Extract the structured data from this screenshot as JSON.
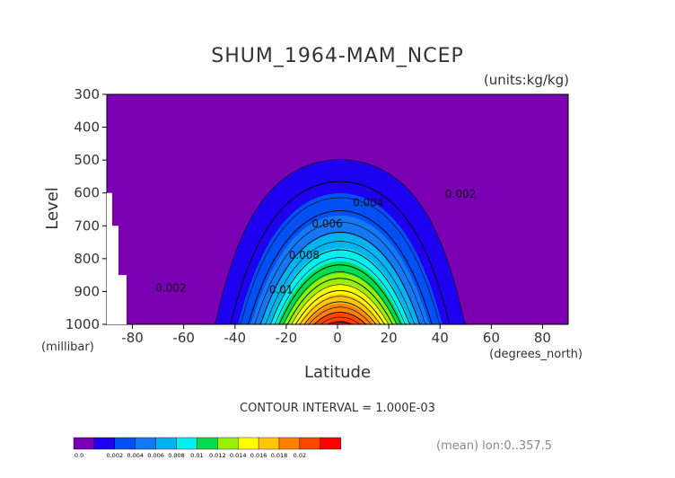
{
  "chart_data": {
    "type": "contour",
    "title": "SHUM_1964-MAM_NCEP",
    "units_label": "(units:kg/kg)",
    "xlabel": "Latitude",
    "ylabel": "Level",
    "x_units": "(degrees_north)",
    "y_units": "(millibar)",
    "xlim": [
      -90,
      90
    ],
    "ylim": [
      1000,
      300
    ],
    "x_ticks": [
      -80,
      -60,
      -40,
      -20,
      0,
      20,
      40,
      60,
      80
    ],
    "y_ticks": [
      300,
      400,
      500,
      600,
      700,
      800,
      900,
      1000
    ],
    "contour_interval_label": "CONTOUR INTERVAL = 1.000E-03",
    "mean_label": "(mean) lon:0..357.5",
    "colorbar": {
      "levels": [
        "0.0",
        "0.002",
        "0.004",
        "0.006",
        "0.008",
        "0.01",
        "0.012",
        "0.014",
        "0.016",
        "0.018",
        "0.02"
      ],
      "colors": [
        "#7b00b4",
        "#1e00f0",
        "#0050f5",
        "#1478f5",
        "#00b4f0",
        "#00f0f0",
        "#00dc50",
        "#96f000",
        "#ffff00",
        "#ffc800",
        "#ff8200",
        "#ff4600",
        "#ff0000"
      ]
    },
    "contour_labels": [
      {
        "text": "0.002",
        "lat": 48,
        "lev": 615
      },
      {
        "text": "0.002",
        "lat": -65,
        "lev": 900
      },
      {
        "text": "0.004",
        "lat": 12,
        "lev": 640
      },
      {
        "text": "0.006",
        "lat": -4,
        "lev": 705
      },
      {
        "text": "0.008",
        "lat": -13,
        "lev": 800
      },
      {
        "text": "0.01",
        "lat": -22,
        "lev": 905
      }
    ]
  }
}
